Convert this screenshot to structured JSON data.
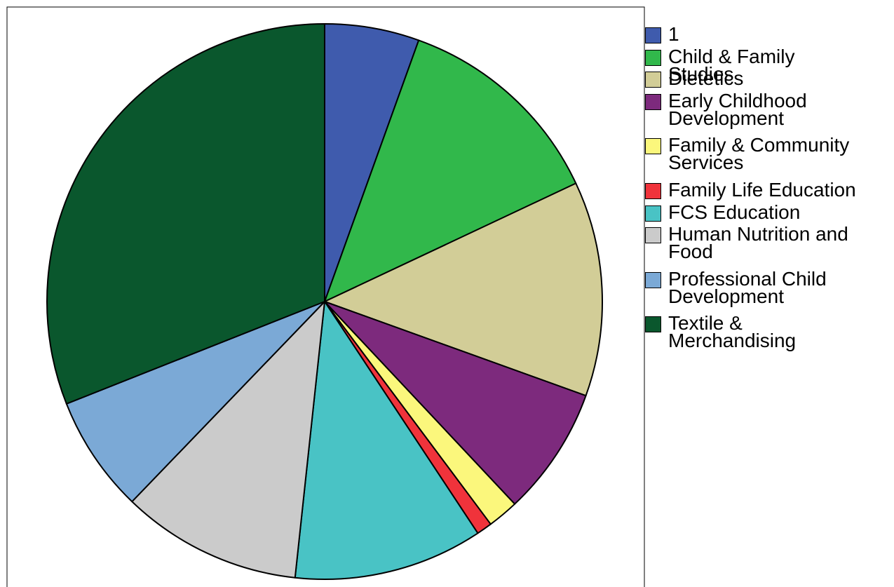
{
  "chart_data": {
    "type": "pie",
    "title": "",
    "slices": [
      {
        "label": "1",
        "value": 5.5,
        "color": "#3f5bad"
      },
      {
        "label": "Child & Family Studies",
        "value": 12.5,
        "color": "#31b84b"
      },
      {
        "label": "Dietetics",
        "value": 12.5,
        "color": "#d2cd97"
      },
      {
        "label": "Early Childhood Development",
        "value": 7.5,
        "color": "#7d2a7d"
      },
      {
        "label": "Family & Community Services",
        "value": 1.8,
        "color": "#fbf77c"
      },
      {
        "label": "Family Life Education",
        "value": 0.9,
        "color": "#f0333b"
      },
      {
        "label": "FCS Education",
        "value": 11.0,
        "color": "#49c3c5"
      },
      {
        "label": "Human Nutrition and Food",
        "value": 10.5,
        "color": "#cbcbcb"
      },
      {
        "label": "Professional Child Development",
        "value": 6.8,
        "color": "#7ba9d6"
      },
      {
        "label": "Textile & Merchandising",
        "value": 31.0,
        "color": "#0a572d"
      }
    ],
    "start_angle": "12 o'clock",
    "direction": "clockwise",
    "legend_position": "right"
  }
}
